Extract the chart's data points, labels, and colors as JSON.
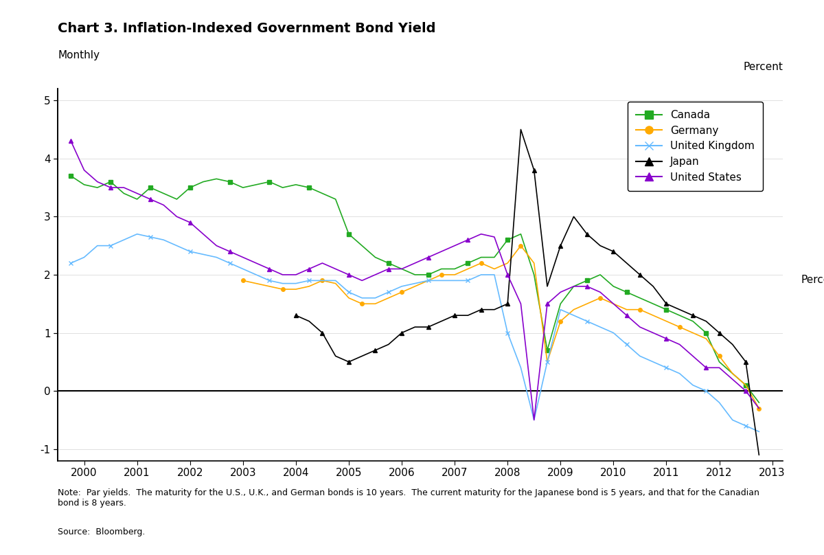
{
  "title": "Chart 3. Inflation-Indexed Government Bond Yield",
  "subtitle": "Monthly",
  "ylabel": "Percent",
  "note": "Note:  Par yields.  The maturity for the U.S., U.K., and German bonds is 10 years.  The current maturity for the Japanese bond is 5 years, and that for the Canadian\nbond is 8 years.",
  "source": "Source:  Bloomberg.",
  "ylim": [
    -1.2,
    5.2
  ],
  "yticks": [
    -1,
    0,
    1,
    2,
    3,
    4,
    5
  ],
  "colors": {
    "Canada": "#22aa22",
    "Germany": "#ffaa00",
    "United_Kingdom": "#66bbff",
    "Japan": "#000000",
    "United_States": "#8800cc"
  },
  "markers": {
    "Canada": "s",
    "Germany": "o",
    "United_Kingdom": "x",
    "Japan": "^",
    "United_States": "^"
  },
  "Canada": {
    "dates": [
      1999.75,
      2000.0,
      2000.25,
      2000.5,
      2000.75,
      2001.0,
      2001.25,
      2001.5,
      2001.75,
      2002.0,
      2002.25,
      2002.5,
      2002.75,
      2003.0,
      2003.25,
      2003.5,
      2003.75,
      2004.0,
      2004.25,
      2004.5,
      2004.75,
      2005.0,
      2005.25,
      2005.5,
      2005.75,
      2006.0,
      2006.25,
      2006.5,
      2006.75,
      2007.0,
      2007.25,
      2007.5,
      2007.75,
      2008.0,
      2008.25,
      2008.5,
      2008.75,
      2009.0,
      2009.25,
      2009.5,
      2009.75,
      2010.0,
      2010.25,
      2010.5,
      2010.75,
      2011.0,
      2011.25,
      2011.5,
      2011.75,
      2012.0,
      2012.25,
      2012.5,
      2012.75
    ],
    "values": [
      3.7,
      3.55,
      3.5,
      3.6,
      3.4,
      3.3,
      3.5,
      3.4,
      3.3,
      3.5,
      3.6,
      3.65,
      3.6,
      3.5,
      3.55,
      3.6,
      3.5,
      3.55,
      3.5,
      3.4,
      3.3,
      2.7,
      2.5,
      2.3,
      2.2,
      2.1,
      2.0,
      2.0,
      2.1,
      2.1,
      2.2,
      2.3,
      2.3,
      2.6,
      2.7,
      2.0,
      0.7,
      1.5,
      1.8,
      1.9,
      2.0,
      1.8,
      1.7,
      1.6,
      1.5,
      1.4,
      1.3,
      1.2,
      1.0,
      0.5,
      0.3,
      0.1,
      -0.2
    ]
  },
  "Germany": {
    "dates": [
      2003.0,
      2003.25,
      2003.5,
      2003.75,
      2004.0,
      2004.25,
      2004.5,
      2004.75,
      2005.0,
      2005.25,
      2005.5,
      2005.75,
      2006.0,
      2006.25,
      2006.5,
      2006.75,
      2007.0,
      2007.25,
      2007.5,
      2007.75,
      2008.0,
      2008.25,
      2008.5,
      2008.75,
      2009.0,
      2009.25,
      2009.5,
      2009.75,
      2010.0,
      2010.25,
      2010.5,
      2010.75,
      2011.0,
      2011.25,
      2011.5,
      2011.75,
      2012.0,
      2012.25,
      2012.5,
      2012.75
    ],
    "values": [
      1.9,
      1.85,
      1.8,
      1.75,
      1.75,
      1.8,
      1.9,
      1.85,
      1.6,
      1.5,
      1.5,
      1.6,
      1.7,
      1.8,
      1.9,
      2.0,
      2.0,
      2.1,
      2.2,
      2.1,
      2.2,
      2.5,
      2.2,
      0.5,
      1.2,
      1.4,
      1.5,
      1.6,
      1.5,
      1.4,
      1.4,
      1.3,
      1.2,
      1.1,
      1.0,
      0.9,
      0.6,
      0.3,
      0.1,
      -0.3
    ]
  },
  "United_Kingdom": {
    "dates": [
      1999.75,
      2000.0,
      2000.25,
      2000.5,
      2000.75,
      2001.0,
      2001.25,
      2001.5,
      2001.75,
      2002.0,
      2002.25,
      2002.5,
      2002.75,
      2003.0,
      2003.25,
      2003.5,
      2003.75,
      2004.0,
      2004.25,
      2004.5,
      2004.75,
      2005.0,
      2005.25,
      2005.5,
      2005.75,
      2006.0,
      2006.25,
      2006.5,
      2006.75,
      2007.0,
      2007.25,
      2007.5,
      2007.75,
      2008.0,
      2008.25,
      2008.5,
      2008.75,
      2009.0,
      2009.25,
      2009.5,
      2009.75,
      2010.0,
      2010.25,
      2010.5,
      2010.75,
      2011.0,
      2011.25,
      2011.5,
      2011.75,
      2012.0,
      2012.25,
      2012.5,
      2012.75
    ],
    "values": [
      2.2,
      2.3,
      2.5,
      2.5,
      2.6,
      2.7,
      2.65,
      2.6,
      2.5,
      2.4,
      2.35,
      2.3,
      2.2,
      2.1,
      2.0,
      1.9,
      1.85,
      1.85,
      1.9,
      1.9,
      1.9,
      1.7,
      1.6,
      1.6,
      1.7,
      1.8,
      1.85,
      1.9,
      1.9,
      1.9,
      1.9,
      2.0,
      2.0,
      1.0,
      0.4,
      -0.5,
      0.5,
      1.4,
      1.3,
      1.2,
      1.1,
      1.0,
      0.8,
      0.6,
      0.5,
      0.4,
      0.3,
      0.1,
      0.0,
      -0.2,
      -0.5,
      -0.6,
      -0.7
    ]
  },
  "Japan": {
    "dates": [
      2004.0,
      2004.25,
      2004.5,
      2004.75,
      2005.0,
      2005.25,
      2005.5,
      2005.75,
      2006.0,
      2006.25,
      2006.5,
      2006.75,
      2007.0,
      2007.25,
      2007.5,
      2007.75,
      2008.0,
      2008.25,
      2008.5,
      2008.75,
      2009.0,
      2009.25,
      2009.5,
      2009.75,
      2010.0,
      2010.25,
      2010.5,
      2010.75,
      2011.0,
      2011.25,
      2011.5,
      2011.75,
      2012.0,
      2012.25,
      2012.5,
      2012.75
    ],
    "values": [
      1.3,
      1.2,
      1.0,
      0.6,
      0.5,
      0.6,
      0.7,
      0.8,
      1.0,
      1.1,
      1.1,
      1.2,
      1.3,
      1.3,
      1.4,
      1.4,
      1.5,
      4.5,
      3.8,
      1.8,
      2.5,
      3.0,
      2.7,
      2.5,
      2.4,
      2.2,
      2.0,
      1.8,
      1.5,
      1.4,
      1.3,
      1.2,
      1.0,
      0.8,
      0.5,
      -1.1
    ]
  },
  "United_States": {
    "dates": [
      1999.75,
      2000.0,
      2000.25,
      2000.5,
      2000.75,
      2001.0,
      2001.25,
      2001.5,
      2001.75,
      2002.0,
      2002.25,
      2002.5,
      2002.75,
      2003.0,
      2003.25,
      2003.5,
      2003.75,
      2004.0,
      2004.25,
      2004.5,
      2004.75,
      2005.0,
      2005.25,
      2005.5,
      2005.75,
      2006.0,
      2006.25,
      2006.5,
      2006.75,
      2007.0,
      2007.25,
      2007.5,
      2007.75,
      2008.0,
      2008.25,
      2008.5,
      2008.75,
      2009.0,
      2009.25,
      2009.5,
      2009.75,
      2010.0,
      2010.25,
      2010.5,
      2010.75,
      2011.0,
      2011.25,
      2011.5,
      2011.75,
      2012.0,
      2012.25,
      2012.5,
      2012.75
    ],
    "values": [
      4.3,
      3.8,
      3.6,
      3.5,
      3.5,
      3.4,
      3.3,
      3.2,
      3.0,
      2.9,
      2.7,
      2.5,
      2.4,
      2.3,
      2.2,
      2.1,
      2.0,
      2.0,
      2.1,
      2.2,
      2.1,
      2.0,
      1.9,
      2.0,
      2.1,
      2.1,
      2.2,
      2.3,
      2.4,
      2.5,
      2.6,
      2.7,
      2.65,
      2.0,
      1.5,
      -0.5,
      1.5,
      1.7,
      1.8,
      1.8,
      1.7,
      1.5,
      1.3,
      1.1,
      1.0,
      0.9,
      0.8,
      0.6,
      0.4,
      0.4,
      0.2,
      0.0,
      -0.3
    ]
  }
}
